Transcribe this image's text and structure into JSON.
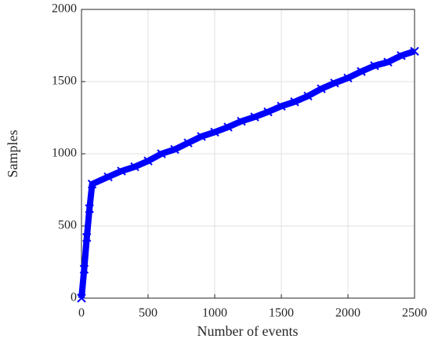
{
  "chart_data": {
    "type": "line",
    "xlabel": "Number of events",
    "ylabel": "Samples",
    "x": [
      0,
      20,
      40,
      60,
      80,
      200,
      300,
      400,
      500,
      600,
      700,
      800,
      900,
      1000,
      1100,
      1200,
      1300,
      1400,
      1500,
      1600,
      1700,
      1800,
      1900,
      2000,
      2100,
      2200,
      2300,
      2400,
      2500
    ],
    "values": [
      0,
      200,
      420,
      620,
      790,
      840,
      880,
      910,
      950,
      1000,
      1030,
      1075,
      1120,
      1150,
      1185,
      1225,
      1255,
      1290,
      1330,
      1360,
      1400,
      1450,
      1490,
      1525,
      1570,
      1610,
      1635,
      1680,
      1710
    ],
    "color": "#0000ff",
    "marker": "x",
    "xlim": [
      0,
      2500
    ],
    "xticks": [
      0,
      500,
      1000,
      1500,
      2000,
      2500
    ],
    "ylim": [
      0,
      2000
    ],
    "yticks": [
      0,
      500,
      1000,
      1500,
      2000
    ],
    "grid": true
  }
}
